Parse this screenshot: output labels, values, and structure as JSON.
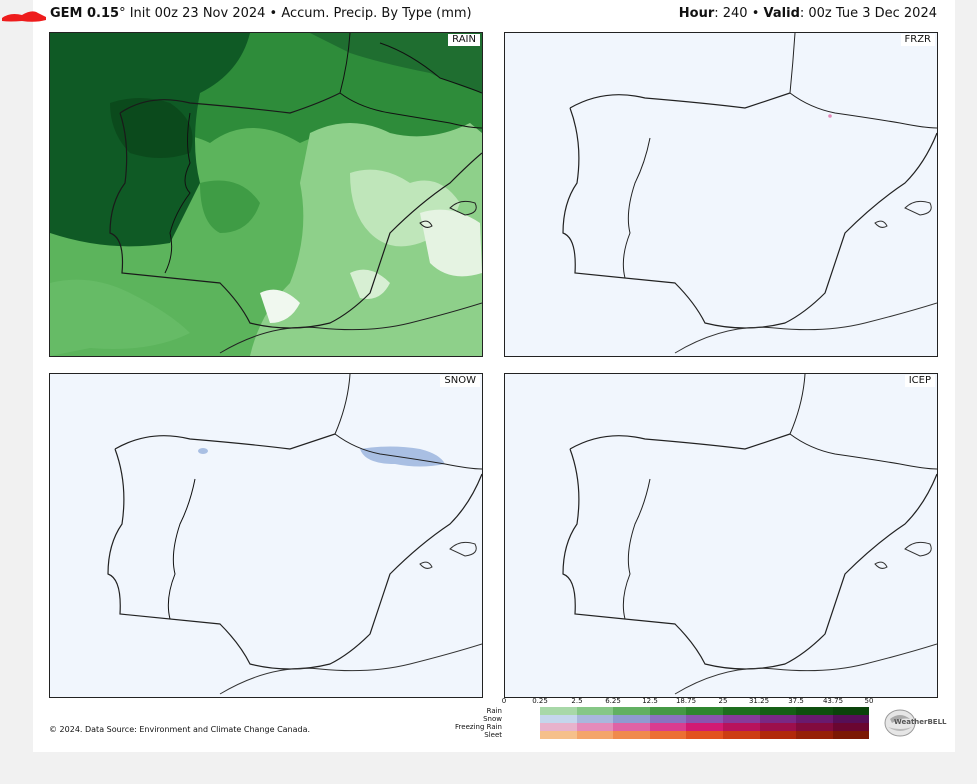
{
  "header": {
    "model": "GEM 0.15",
    "init": "° Init 00z 23 Nov 2024 • Accum. Precip. By Type (mm)",
    "hour_label": "Hour",
    "hour_value": ": 240 •",
    "valid_label": "Valid",
    "valid_value": ": 00z Tue 3 Dec 2024"
  },
  "panels": {
    "rain": "RAIN",
    "frzr": "FRZR",
    "snow": "SNOW",
    "icep": "ICEP"
  },
  "scale": {
    "ticks": [
      "0",
      "0.25",
      "2.5",
      "6.25",
      "12.5",
      "18.75",
      "25",
      "31.25",
      "37.5",
      "43.75",
      "50"
    ],
    "types": [
      "Rain",
      "Snow",
      "Freezing Rain",
      "Sleet"
    ],
    "colors": {
      "rain": [
        "#a8d8a8",
        "#86c786",
        "#62b062",
        "#459945",
        "#2f862f",
        "#1e6e1e",
        "#155f15",
        "#0e4f0e",
        "#0a430a"
      ],
      "snow": [
        "#c5d6ec",
        "#a9b7dc",
        "#8f9bd0",
        "#8a73bf",
        "#8b54ae",
        "#883a99",
        "#7a2884",
        "#6a1a6e",
        "#560f57"
      ],
      "frzr": [
        "#e8b2cc",
        "#e48bba",
        "#df63a5",
        "#da3c8f",
        "#d21a73",
        "#b8125c",
        "#9c0f4c",
        "#820b3e",
        "#6a0631"
      ],
      "sleet": [
        "#f6c08a",
        "#f4a56a",
        "#f08a4c",
        "#ec6f33",
        "#e2521f",
        "#cd3d13",
        "#b1290b",
        "#962008",
        "#7c1804"
      ]
    }
  },
  "credit": "© 2024. Data Source: Environment and Climate Change Canada.",
  "logo_text": "WeatherBELL"
}
